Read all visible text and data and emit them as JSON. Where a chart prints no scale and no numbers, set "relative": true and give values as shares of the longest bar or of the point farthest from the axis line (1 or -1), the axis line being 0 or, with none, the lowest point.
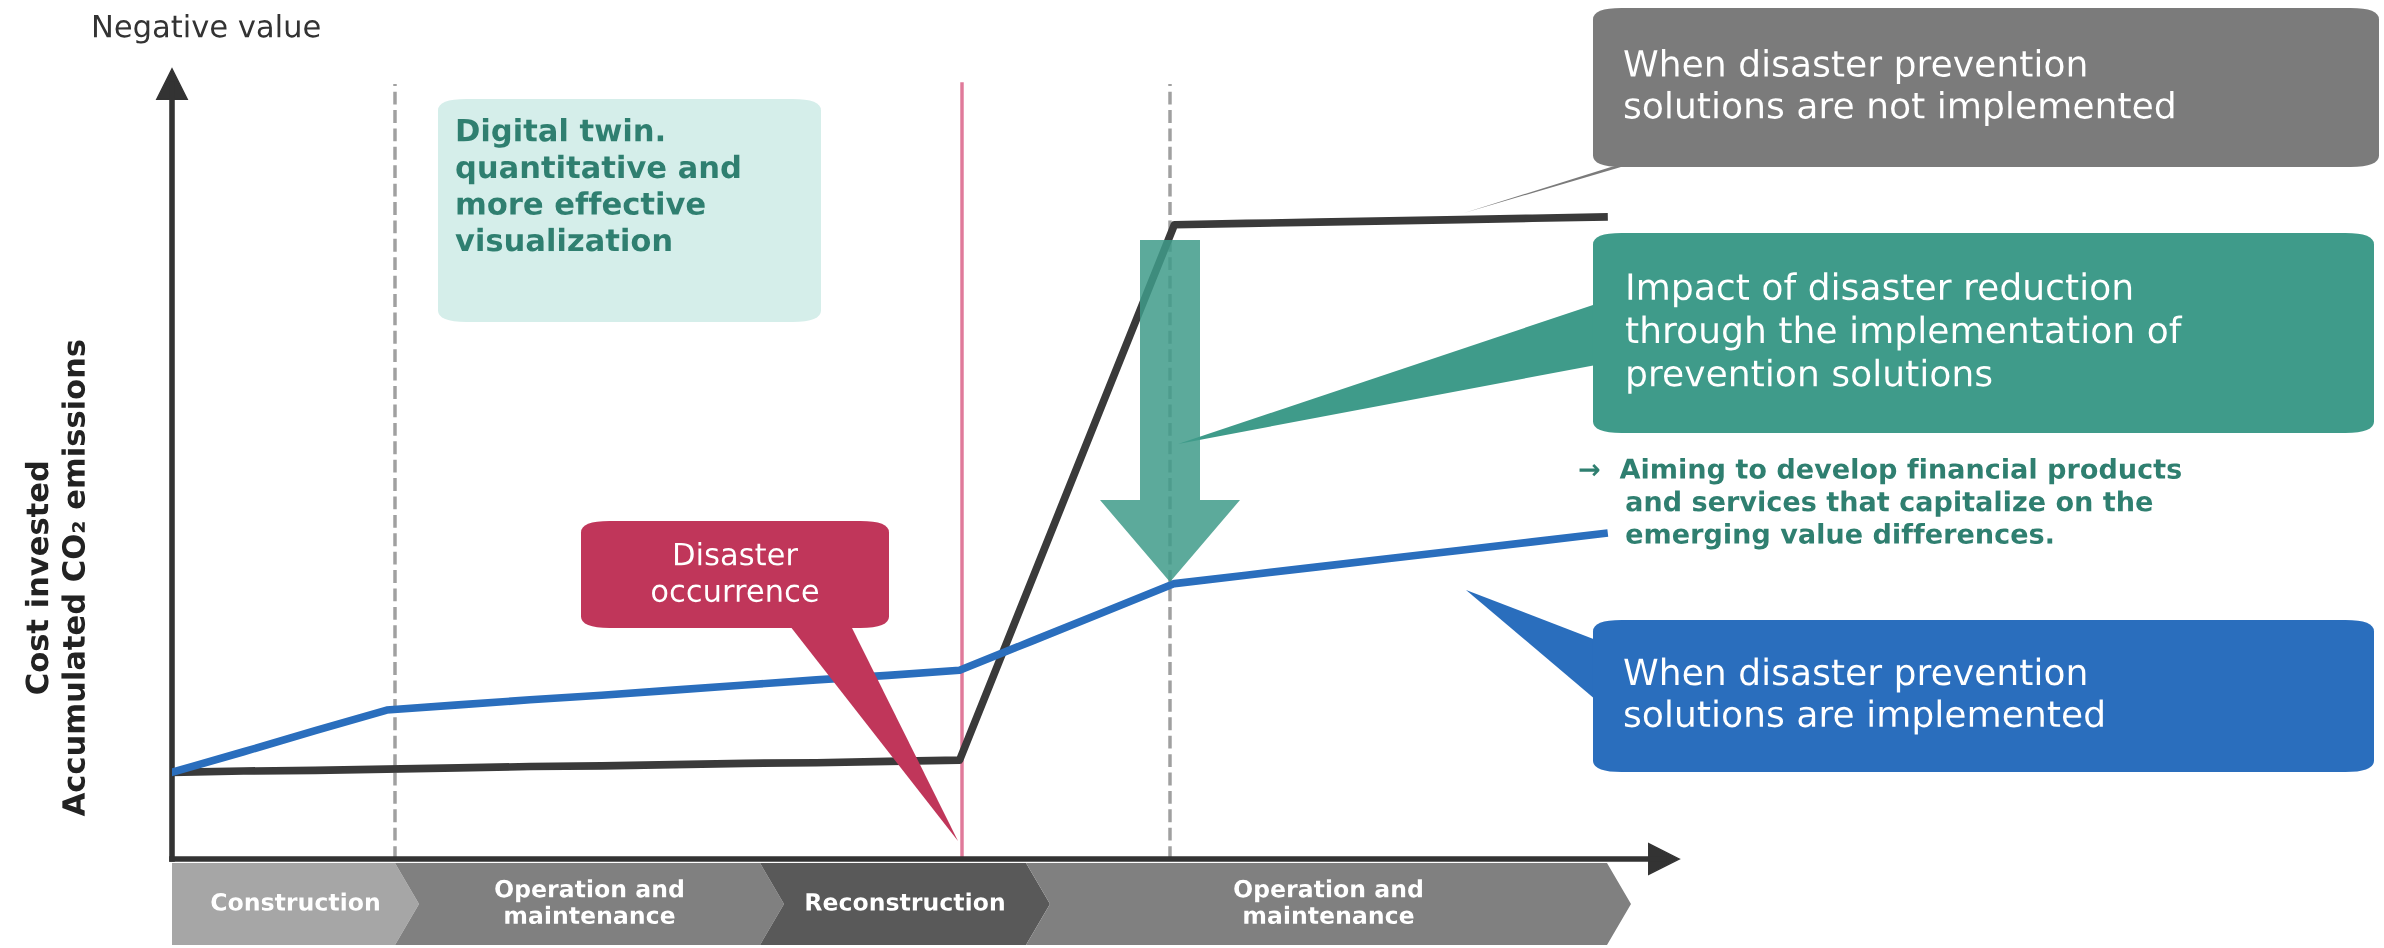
{
  "chart_data": {
    "type": "line",
    "relative": true,
    "legend": false,
    "grid": false,
    "marker": "none",
    "line_style": "solid",
    "ylabel": "Cost invested\nAccumulated CO₂ emissions",
    "categories": [
      null,
      null,
      null,
      null,
      null,
      null,
      null,
      null,
      null,
      null,
      null,
      null,
      null,
      null,
      null,
      null,
      null,
      null,
      null,
      null,
      null
    ],
    "series": [
      {
        "name": "When disaster prevention\nsolutions are not implemented",
        "color": "#3a3a3a",
        "values": [
          0.135,
          0.137,
          0.138,
          0.14,
          0.142,
          0.144,
          0.145,
          0.147,
          0.149,
          0.15,
          0.152,
          0.154,
          0.432,
          0.71,
          0.988,
          0.99,
          0.992,
          0.994,
          0.996,
          0.998,
          1.0
        ]
      },
      {
        "name": "When disaster prevention\nsolutions are implemented",
        "color": "#2a6ebd",
        "values": [
          0.135,
          0.167,
          0.2,
          0.232,
          0.24,
          0.248,
          0.255,
          0.263,
          0.271,
          0.279,
          0.286,
          0.294,
          0.339,
          0.384,
          0.429,
          0.442,
          0.455,
          0.468,
          0.481,
          0.494,
          0.507
        ]
      }
    ],
    "annotations": [
      "Negative value",
      "Digital twin.\nquantitative and\nmore effective\nvisualization",
      "Disaster\noccurrence",
      "Impact of disaster reduction\nthrough the implementation of\nprevention solutions",
      "→  Aiming to develop financial products\n     and services that capitalize on the\n     emerging value differences.",
      "Construction",
      "Operation and\nmaintenance",
      "Reconstruction",
      "Operation and\nmaintenance"
    ]
  }
}
